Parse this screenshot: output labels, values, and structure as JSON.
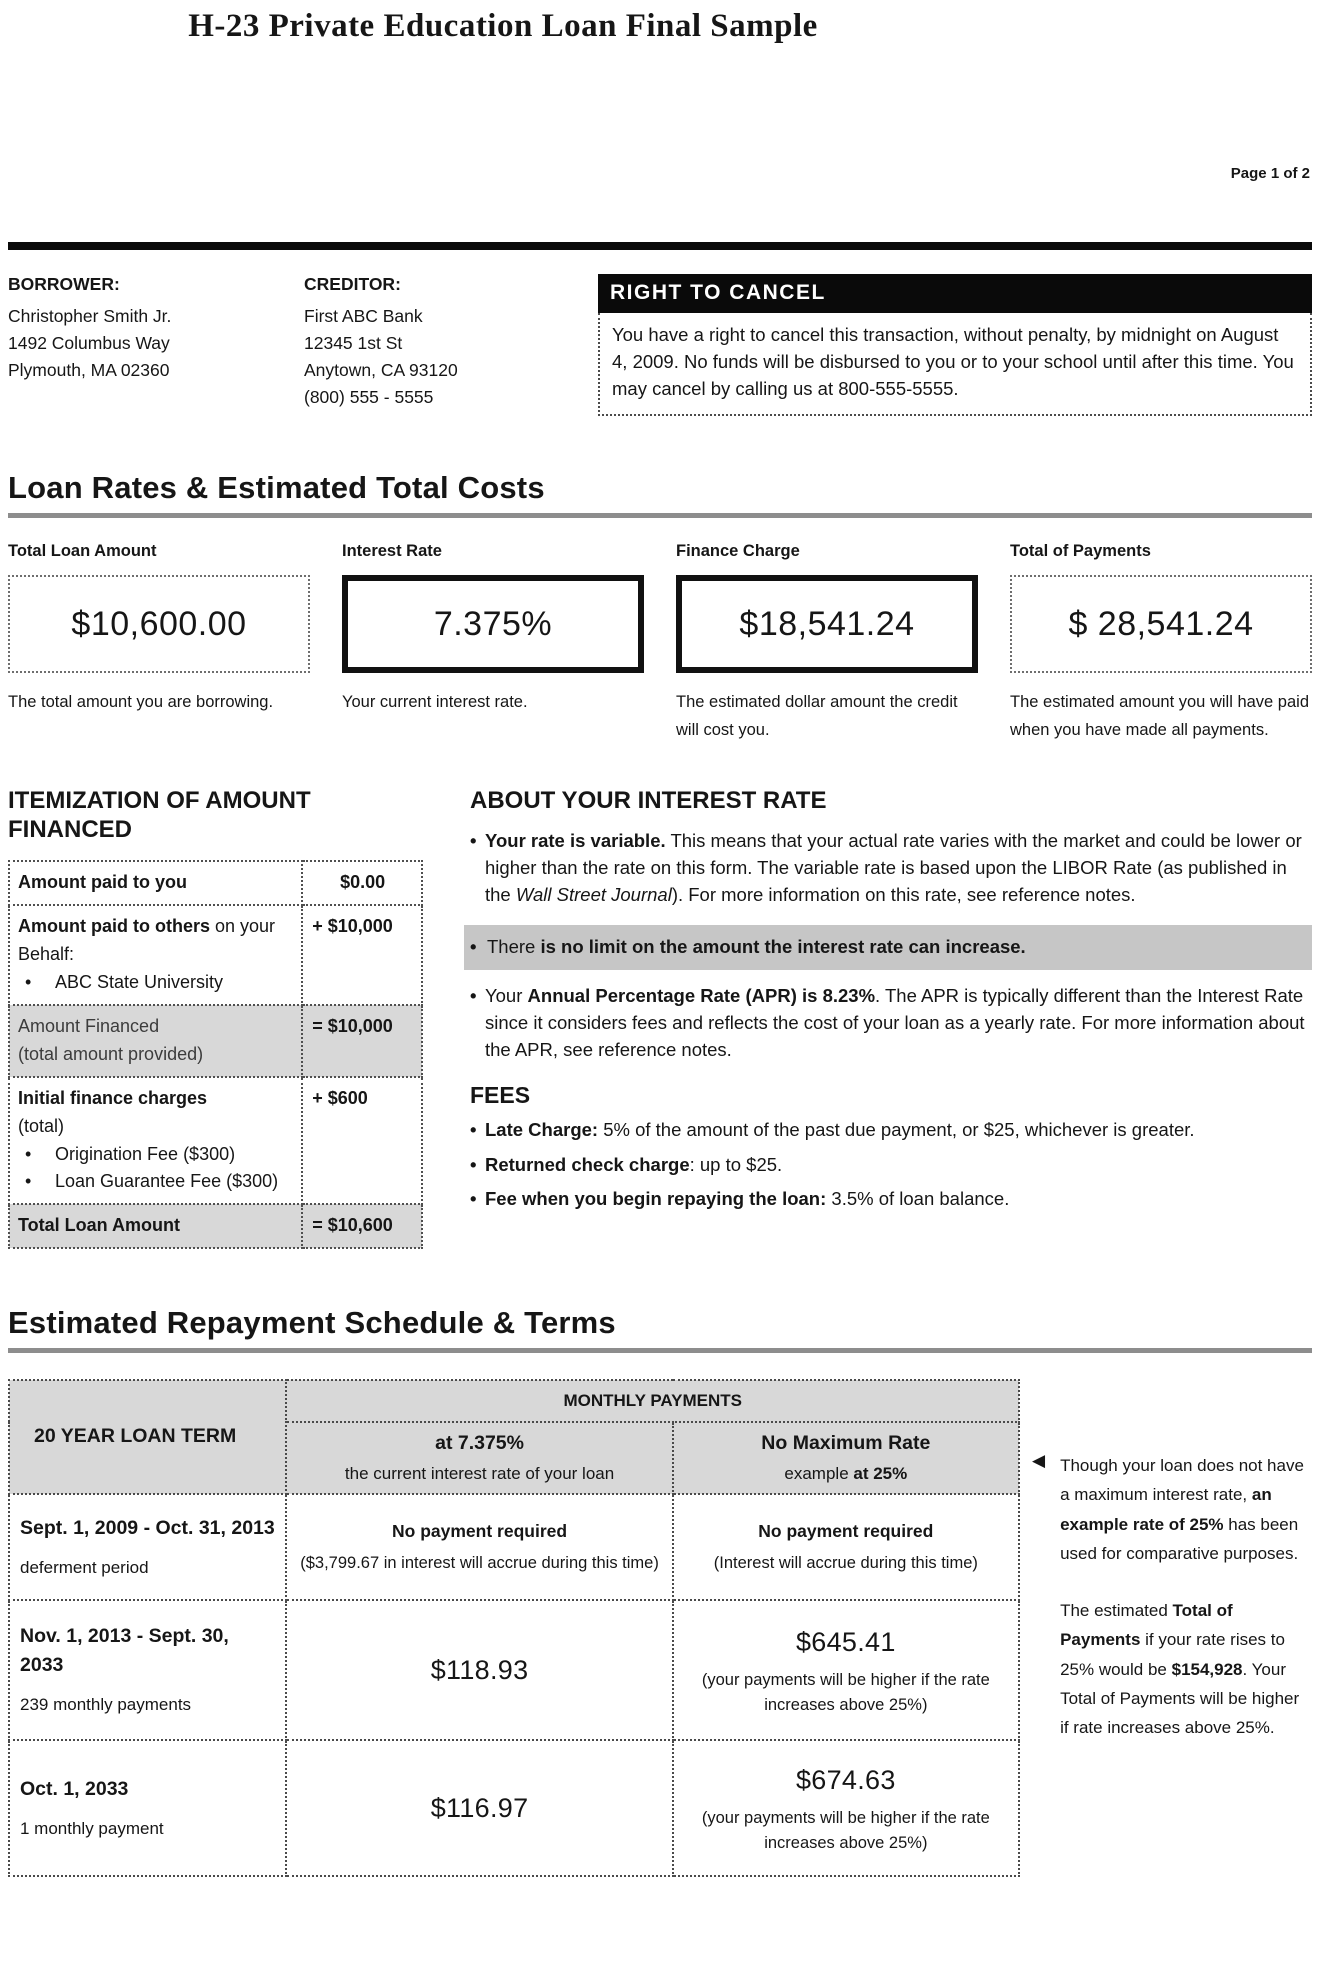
{
  "colors": {
    "shaded_cell": "#d8d8d8",
    "highlight_strip": "#c6c6c6",
    "header_bar": "#000000"
  },
  "page": {
    "title": "H-23 Private Education Loan Final Sample",
    "page_label": "Page 1 of 2"
  },
  "borrower": {
    "label": "BORROWER:",
    "line1": "Christopher Smith Jr.",
    "line2": "1492 Columbus Way",
    "line3": "Plymouth, MA 02360"
  },
  "creditor": {
    "label": "CREDITOR:",
    "line1": "First ABC Bank",
    "line2": "12345 1st St",
    "line3": "Anytown, CA 93120",
    "line4": "(800) 555 - 5555"
  },
  "right_to_cancel": {
    "title": "RIGHT TO CANCEL",
    "body": "You have a right to cancel this transaction, without penalty, by midnight on August 4, 2009.  No funds will be disbursed to you or to your school until after this time. You may cancel by calling us at 800-555-5555."
  },
  "loan_rates": {
    "heading": "Loan Rates & Estimated Total Costs",
    "box1": {
      "label": "Total Loan Amount",
      "value": "$10,600.00",
      "caption": "The total amount you are borrowing."
    },
    "box2": {
      "label": "Interest Rate",
      "value": "7.375%",
      "caption": "Your current interest rate."
    },
    "box3": {
      "label": "Finance Charge",
      "value": "$18,541.24",
      "caption": "The estimated dollar amount the credit will cost you."
    },
    "box4": {
      "label": "Total of Payments",
      "value": "$ 28,541.24",
      "caption": "The estimated amount you will have paid when you have made all payments."
    }
  },
  "itemization": {
    "heading_line1": "ITEMIZATION OF AMOUNT",
    "heading_line2": "FINANCED",
    "row1": {
      "label": "Amount paid to you",
      "value": "$0.00"
    },
    "row2": {
      "label_bold": "Amount paid to others",
      "label_rest": " on your Behalf:",
      "bullet1": "ABC State University",
      "value": "+ $10,000"
    },
    "row3": {
      "label_line1": "Amount Financed",
      "label_line2": "(total amount provided)",
      "value": "= $10,000"
    },
    "row4": {
      "label_bold": "Initial finance charges",
      "label_rest": "(total)",
      "bullet1": "Origination Fee ($300)",
      "bullet2": "Loan Guarantee Fee ($300)",
      "value": "+ $600"
    },
    "row5": {
      "label": "Total Loan Amount",
      "value": "= $10,600"
    }
  },
  "about_rate": {
    "heading": "ABOUT YOUR INTEREST RATE",
    "b1_bold": "Your rate is variable.",
    "b1_text1": "  This means that your actual rate varies with the market and could be lower or higher than the rate on this form.   The variable rate is based upon the LIBOR Rate (as published in the ",
    "b1_italic": "Wall Street Journal",
    "b1_text2": ").  For more information on this rate, see reference notes.",
    "b2_lead": "There ",
    "b2_bold": "is no limit on the amount the interest rate can increase.",
    "b3_lead": "Your ",
    "b3_bold": "Annual Percentage Rate (APR)  is 8.23%",
    "b3_text": ".  The APR is typically different than the Interest Rate since it considers fees and reflects the cost of your loan as a yearly rate.  For more information about the APR, see reference notes.",
    "fees_heading": "FEES",
    "f1_bold": "Late Charge:",
    "f1_text": " 5% of the amount of the past due payment, or $25, whichever is greater.",
    "f2_bold": "Returned check charge",
    "f2_text": ": up to $25.",
    "f3_bold": "Fee when you begin repaying the loan:",
    "f3_text": " 3.5% of loan balance."
  },
  "repayment": {
    "heading": "Estimated Repayment Schedule & Terms",
    "term_header": "20 YEAR LOAN TERM",
    "monthly_header": "MONTHLY PAYMENTS",
    "col_current_bold": "at 7.375%",
    "col_current_sub": "the current interest rate of your loan",
    "col_max_bold": "No Maximum Rate",
    "col_max_sub_lead": "example ",
    "col_max_sub_bold": "at 25%",
    "row1": {
      "period": "Sept. 1, 2009 - Oct. 31, 2013",
      "desc": "deferment period",
      "current_bold": "No payment required",
      "current_sub": "($3,799.67 in interest will accrue during this time)",
      "max_bold": "No payment required",
      "max_sub": "(Interest will accrue during this time)"
    },
    "row2": {
      "period": "Nov. 1, 2013 - Sept. 30, 2033",
      "desc": "239 monthly payments",
      "current_amount": "$118.93",
      "max_amount": "$645.41",
      "max_sub": "(your payments will be higher if the rate increases above 25%)"
    },
    "row3": {
      "period": "Oct. 1, 2033",
      "desc": "1 monthly payment",
      "current_amount": "$116.97",
      "max_amount": "$674.63",
      "max_sub": "(your payments will be higher if the rate increases above 25%)"
    }
  },
  "side_note": {
    "arrow": "◀",
    "p1_lead": "Though your loan does not have a maximum interest rate, ",
    "p1_bold": "an example rate of 25%",
    "p1_rest": " has been used for comparative purposes.",
    "p2_lead": "The estimated ",
    "p2_bold1": "Total of Payments",
    "p2_mid": " if your rate rises to 25% would be ",
    "p2_bold2": "$154,928",
    "p2_rest": ". Your Total of Payments will be higher if rate increases above 25%."
  }
}
